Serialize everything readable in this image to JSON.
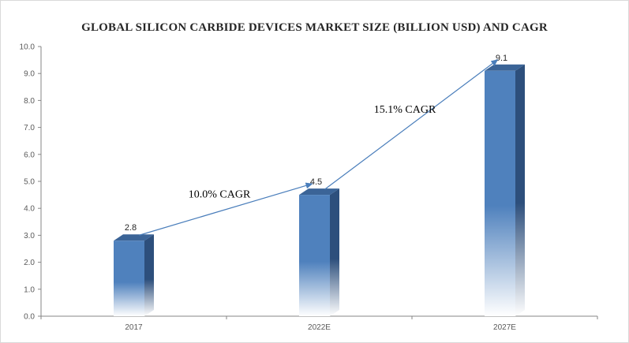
{
  "chart_data": {
    "type": "bar",
    "title": "GLOBAL SILICON CARBIDE DEVICES MARKET SIZE (BILLION USD) AND CAGR",
    "categories": [
      "2017",
      "2022E",
      "2027E"
    ],
    "values": [
      2.8,
      4.5,
      9.1
    ],
    "data_labels": [
      "2.8",
      "4.5",
      "9.1"
    ],
    "ylim": [
      0,
      10
    ],
    "yticks": [
      "0.0",
      "1.0",
      "2.0",
      "3.0",
      "4.0",
      "5.0",
      "6.0",
      "7.0",
      "8.0",
      "9.0",
      "10.0"
    ],
    "xlabel": "",
    "ylabel": "",
    "grid": false,
    "legend": "none",
    "bar_color": "#4f81bd",
    "bar_dark_color": "#2d4f7c",
    "annotations": [
      {
        "text": "10.0% CAGR",
        "from": "2017",
        "to": "2022E"
      },
      {
        "text": "15.1% CAGR",
        "from": "2022E",
        "to": "2027E"
      }
    ],
    "arrow_color": "#4a7ebb"
  }
}
